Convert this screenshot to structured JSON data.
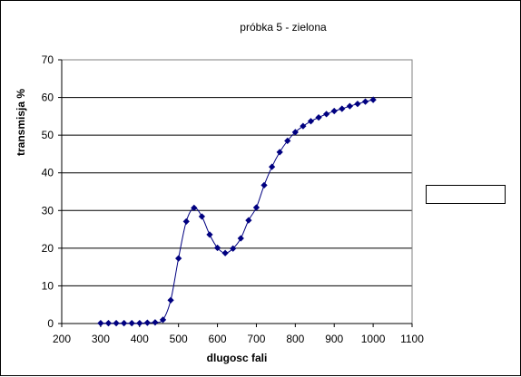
{
  "chart_data": {
    "type": "line",
    "title": "próbka 5 - zielona",
    "xlabel": "dlugosc fali",
    "ylabel": "transmisja %",
    "xlim": [
      200,
      1100
    ],
    "ylim": [
      0,
      70
    ],
    "xticks": [
      "200",
      "300",
      "400",
      "500",
      "600",
      "700",
      "800",
      "900",
      "1000",
      "1100"
    ],
    "yticks": [
      "0",
      "10",
      "20",
      "30",
      "40",
      "50",
      "60",
      "70"
    ],
    "grid": "horizontal",
    "legend": "right",
    "series": [
      {
        "color": "#000080",
        "marker": "diamond",
        "points": [
          [
            300,
            0.1
          ],
          [
            320,
            0.1
          ],
          [
            340,
            0.1
          ],
          [
            360,
            0.1
          ],
          [
            380,
            0.1
          ],
          [
            400,
            0.1
          ],
          [
            420,
            0.2
          ],
          [
            440,
            0.3
          ],
          [
            460,
            1.0
          ],
          [
            480,
            6.2
          ],
          [
            500,
            17.3
          ],
          [
            520,
            27.1
          ],
          [
            540,
            30.7
          ],
          [
            560,
            28.4
          ],
          [
            580,
            23.6
          ],
          [
            600,
            20.1
          ],
          [
            620,
            18.7
          ],
          [
            640,
            19.9
          ],
          [
            660,
            22.6
          ],
          [
            680,
            27.4
          ],
          [
            700,
            30.8
          ],
          [
            720,
            36.7
          ],
          [
            740,
            41.6
          ],
          [
            760,
            45.5
          ],
          [
            780,
            48.5
          ],
          [
            800,
            50.8
          ],
          [
            820,
            52.4
          ],
          [
            840,
            53.7
          ],
          [
            860,
            54.7
          ],
          [
            880,
            55.6
          ],
          [
            900,
            56.4
          ],
          [
            920,
            57.0
          ],
          [
            940,
            57.7
          ],
          [
            960,
            58.3
          ],
          [
            980,
            58.9
          ],
          [
            1000,
            59.4
          ]
        ]
      }
    ]
  }
}
